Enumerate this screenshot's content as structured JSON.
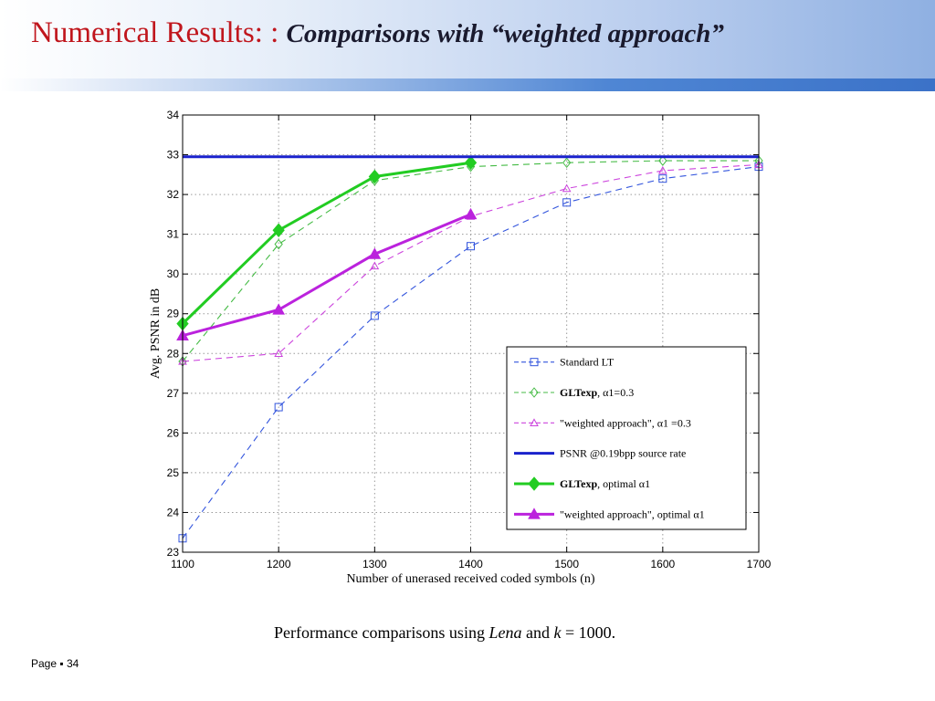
{
  "slide": {
    "title_main": "Numerical Results: : ",
    "title_sub": "Comparisons with “weighted approach”",
    "caption_prefix": "Performance comparisons using ",
    "caption_italic": "Lena",
    "caption_mid": " and ",
    "caption_math_k": "k",
    "caption_math_rest": " = 1000.",
    "page_label": "Page",
    "page_separator": "▪",
    "page_number": "34"
  },
  "chart_data": {
    "type": "line",
    "title": "",
    "xlabel": "Number of unerased received coded symbols (n)",
    "ylabel": "Avg. PSNR in dB",
    "x": [
      1100,
      1200,
      1300,
      1400,
      1500,
      1600,
      1700
    ],
    "xlim": [
      1100,
      1700
    ],
    "ylim": [
      23,
      34
    ],
    "yticks": [
      23,
      24,
      25,
      26,
      27,
      28,
      29,
      30,
      31,
      32,
      33,
      34
    ],
    "grid": true,
    "legend_position": "bottom-right",
    "series": [
      {
        "name": "Standard LT",
        "x": [
          1100,
          1200,
          1300,
          1400,
          1500,
          1600,
          1700
        ],
        "values": [
          23.35,
          26.65,
          28.95,
          30.7,
          31.8,
          32.4,
          32.7
        ],
        "color": "#3355dd",
        "style": "dashed",
        "marker": "square",
        "bold": false
      },
      {
        "name": "GLTexp",
        "suffix": ", α1=0.3",
        "x": [
          1100,
          1200,
          1300,
          1400,
          1500,
          1600,
          1700
        ],
        "values": [
          27.8,
          30.75,
          32.35,
          32.7,
          32.8,
          32.85,
          32.85
        ],
        "color": "#44bb44",
        "style": "dashed",
        "marker": "diamond",
        "bold": false
      },
      {
        "name": "\"weighted approach\",",
        "suffix": "α1 =0.3",
        "x": [
          1100,
          1200,
          1300,
          1400,
          1500,
          1600,
          1700
        ],
        "values": [
          27.8,
          28.0,
          30.2,
          31.45,
          32.15,
          32.6,
          32.75
        ],
        "color": "#cc44dd",
        "style": "dashed",
        "marker": "triangle",
        "bold": false
      },
      {
        "name": "PSNR @0.19bpp source rate",
        "suffix": "",
        "x": [
          1100,
          1700
        ],
        "values": [
          32.95,
          32.95
        ],
        "color": "#1a22cc",
        "style": "solid",
        "marker": "none",
        "bold": true
      },
      {
        "name": "GLTexp",
        "suffix": ", optimal α1",
        "x": [
          1100,
          1200,
          1300,
          1400
        ],
        "values": [
          28.75,
          31.1,
          32.45,
          32.8
        ],
        "color": "#22cc22",
        "style": "solid",
        "marker": "diamond-filled",
        "bold": true
      },
      {
        "name": "\"weighted approach\", optimal α1",
        "suffix": "",
        "x": [
          1100,
          1200,
          1300,
          1400
        ],
        "values": [
          28.45,
          29.1,
          30.5,
          31.5
        ],
        "color": "#bb22dd",
        "style": "solid",
        "marker": "triangle-filled",
        "bold": true
      }
    ]
  }
}
